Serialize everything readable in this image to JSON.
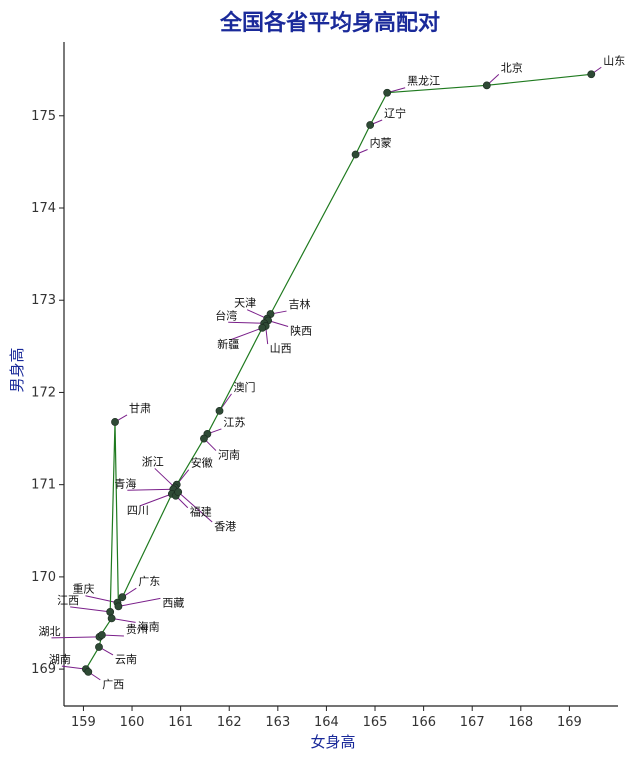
{
  "chart_data": {
    "type": "scatter",
    "title": "全国各省平均身高配对",
    "xlabel": "女身高",
    "ylabel": "男身高",
    "xlim": [
      158.6,
      170.0
    ],
    "ylim": [
      168.6,
      175.8
    ],
    "xticks": [
      159,
      160,
      161,
      162,
      163,
      164,
      165,
      166,
      167,
      168,
      169
    ],
    "yticks": [
      169,
      170,
      171,
      172,
      173,
      174,
      175
    ],
    "grid": false,
    "point_color": "#2e4a35",
    "line_color": "#1f7a1f",
    "leader_color": "#7a1f8a",
    "points": [
      {
        "name": "山东",
        "x": 169.45,
        "y": 175.45
      },
      {
        "name": "北京",
        "x": 167.3,
        "y": 175.33
      },
      {
        "name": "黑龙江",
        "x": 165.25,
        "y": 175.25
      },
      {
        "name": "辽宁",
        "x": 164.9,
        "y": 174.9
      },
      {
        "name": "内蒙",
        "x": 164.6,
        "y": 174.58
      },
      {
        "name": "吉林",
        "x": 162.85,
        "y": 172.85
      },
      {
        "name": "天津",
        "x": 162.78,
        "y": 172.8
      },
      {
        "name": "陕西",
        "x": 162.8,
        "y": 172.78
      },
      {
        "name": "台湾",
        "x": 162.72,
        "y": 172.75
      },
      {
        "name": "山西",
        "x": 162.75,
        "y": 172.72
      },
      {
        "name": "新疆",
        "x": 162.68,
        "y": 172.7
      },
      {
        "name": "澳门",
        "x": 161.8,
        "y": 171.8
      },
      {
        "name": "江苏",
        "x": 161.55,
        "y": 171.55
      },
      {
        "name": "河南",
        "x": 161.48,
        "y": 171.5
      },
      {
        "name": "安徽",
        "x": 160.92,
        "y": 171.0
      },
      {
        "name": "浙江",
        "x": 160.88,
        "y": 170.97
      },
      {
        "name": "青海",
        "x": 160.85,
        "y": 170.95
      },
      {
        "name": "四川",
        "x": 160.82,
        "y": 170.9
      },
      {
        "name": "福建",
        "x": 160.9,
        "y": 170.88
      },
      {
        "name": "香港",
        "x": 160.95,
        "y": 170.92
      },
      {
        "name": "甘肃",
        "x": 159.65,
        "y": 171.68
      },
      {
        "name": "广东",
        "x": 159.8,
        "y": 169.78
      },
      {
        "name": "重庆",
        "x": 159.7,
        "y": 169.72
      },
      {
        "name": "西藏",
        "x": 159.72,
        "y": 169.68
      },
      {
        "name": "江西",
        "x": 159.55,
        "y": 169.62
      },
      {
        "name": "海南",
        "x": 159.58,
        "y": 169.55
      },
      {
        "name": "湖北",
        "x": 159.33,
        "y": 169.35
      },
      {
        "name": "贵州",
        "x": 159.38,
        "y": 169.37
      },
      {
        "name": "云南",
        "x": 159.32,
        "y": 169.24
      },
      {
        "name": "湖南",
        "x": 159.05,
        "y": 169.0
      },
      {
        "name": "广西",
        "x": 159.1,
        "y": 168.97
      }
    ],
    "path_order": [
      "广西",
      "湖南",
      "云南",
      "贵州",
      "湖北",
      "海南",
      "江西",
      "甘肃",
      "西藏",
      "重庆",
      "广东",
      "四川",
      "青海",
      "浙江",
      "福建",
      "香港",
      "安徽",
      "河南",
      "江苏",
      "澳门",
      "新疆",
      "山西",
      "台湾",
      "陕西",
      "天津",
      "吉林",
      "内蒙",
      "辽宁",
      "黑龙江",
      "北京",
      "山东"
    ],
    "label_offsets_note": ""
  }
}
